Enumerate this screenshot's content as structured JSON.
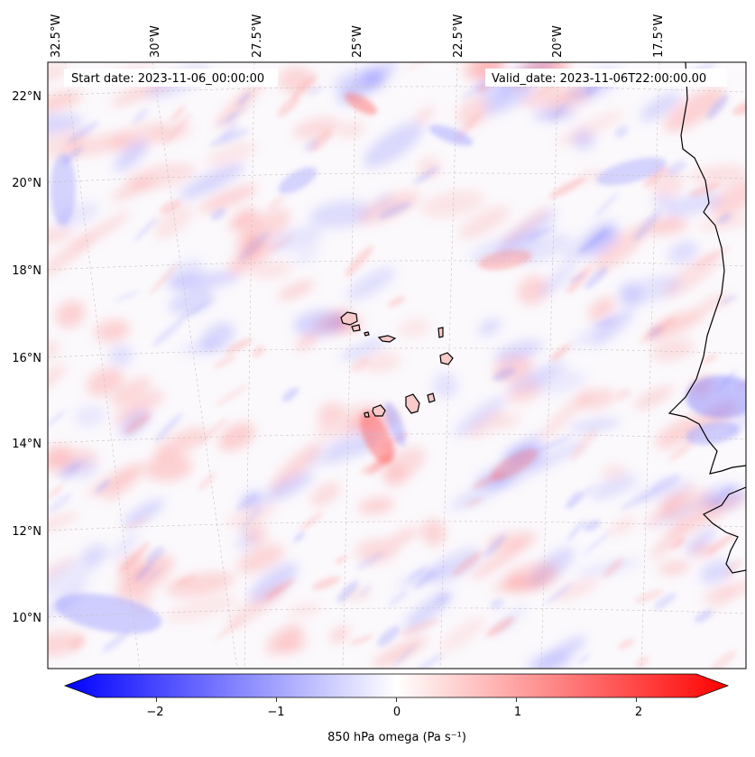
{
  "map": {
    "start_label": "Start date: 2023-11-06_00:00:00",
    "valid_label": "Valid_date: 2023-11-06T22:00:00.00",
    "lon_labels": [
      "32.5°W",
      "30°W",
      "27.5°W",
      "25°W",
      "22.5°W",
      "20°W",
      "17.5°W"
    ],
    "lat_labels": [
      "22°N",
      "20°N",
      "18°N",
      "16°N",
      "14°N",
      "12°N",
      "10°N"
    ]
  },
  "colorbar": {
    "label": "850 hPa omega (Pa s⁻¹)",
    "ticks": [
      "−2",
      "−1",
      "0",
      "1",
      "2"
    ],
    "tick_values": [
      -2,
      -1,
      0,
      1,
      2
    ],
    "range": [
      -2.5,
      2.5
    ],
    "colormap": "bwr",
    "colors": {
      "negative": "#0000ff",
      "zero": "#ffffff",
      "positive": "#ff0000"
    }
  }
}
